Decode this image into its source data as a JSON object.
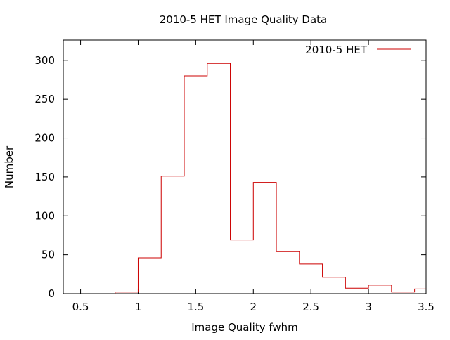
{
  "chart_data": {
    "type": "line",
    "style": "histogram-steps",
    "title": "2010-5 HET Image Quality Data",
    "xlabel": "Image Quality fwhm",
    "ylabel": "Number",
    "xlim": [
      0.35,
      3.5
    ],
    "ylim": [
      0,
      326
    ],
    "x_ticks": [
      "0.5",
      "1",
      "1.5",
      "2",
      "2.5",
      "3",
      "3.5"
    ],
    "x_tick_values": [
      0.5,
      1,
      1.5,
      2,
      2.5,
      3,
      3.5
    ],
    "y_ticks": [
      "0",
      "50",
      "100",
      "150",
      "200",
      "250",
      "300"
    ],
    "y_tick_values": [
      0,
      50,
      100,
      150,
      200,
      250,
      300
    ],
    "grid": false,
    "legend_position": "top-right",
    "series": [
      {
        "name": "2010-5 HET",
        "color": "#cc0000",
        "bin_edges": [
          0.8,
          1.0,
          1.2,
          1.4,
          1.6,
          1.8,
          2.0,
          2.2,
          2.4,
          2.6,
          2.8,
          3.0,
          3.2,
          3.4,
          3.5
        ],
        "values": [
          2,
          46,
          151,
          280,
          296,
          69,
          143,
          54,
          38,
          21,
          7,
          11,
          2,
          6
        ]
      }
    ]
  }
}
